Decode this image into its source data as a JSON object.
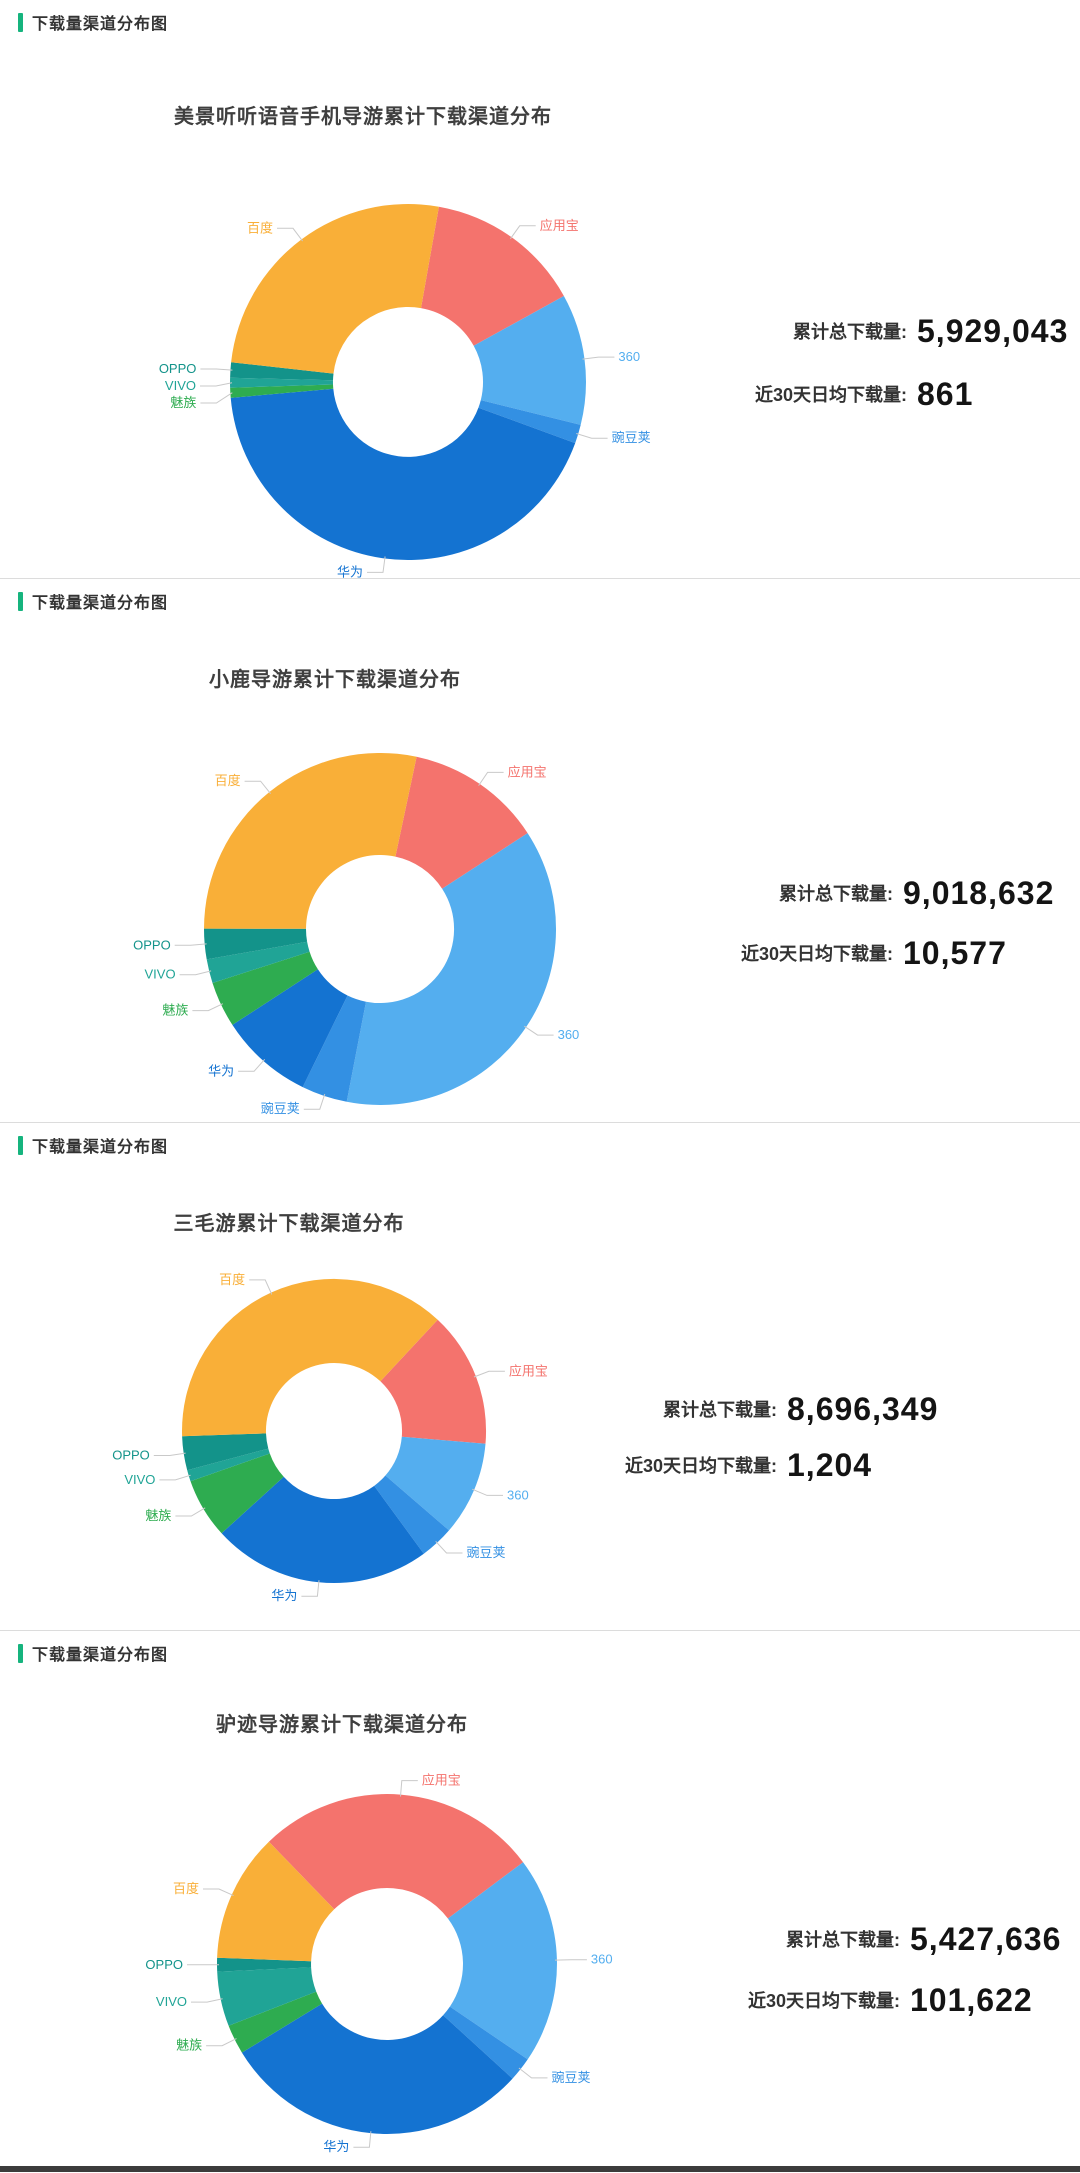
{
  "section_header": "下载量渠道分布图",
  "labels": {
    "total": "累计总下载量:",
    "daily": "近30天日均下载量:"
  },
  "accent_color": "#16B47E",
  "chart_data": [
    {
      "type": "donut",
      "title": "美景听听语音手机导游累计下载渠道分布",
      "value_unit": "percent share (estimated from arc angles)",
      "start_angle_deg_clockwise_from_top": 10,
      "slices": [
        {
          "label": "应用宝",
          "value": 14.2,
          "color": "#F4736D"
        },
        {
          "label": "360",
          "value": 11.9,
          "color": "#54AEEF"
        },
        {
          "label": "豌豆荚",
          "value": 1.7,
          "color": "#3390E3"
        },
        {
          "label": "华为",
          "value": 43.0,
          "color": "#1473D1"
        },
        {
          "label": "魅族",
          "value": 0.9,
          "color": "#2EAC50"
        },
        {
          "label": "VIVO",
          "value": 0.9,
          "color": "#20A496"
        },
        {
          "label": "OPPO",
          "value": 1.4,
          "color": "#13938A"
        },
        {
          "label": "百度",
          "value": 26.0,
          "color": "#F9AF38"
        }
      ],
      "totals": {
        "total": "5,929,043",
        "daily": "861"
      }
    },
    {
      "type": "donut",
      "title": "小鹿导游累计下载渠道分布",
      "value_unit": "percent share (estimated from arc angles)",
      "start_angle_deg_clockwise_from_top": 12,
      "slices": [
        {
          "label": "应用宝",
          "value": 12.5,
          "color": "#F4736D"
        },
        {
          "label": "360",
          "value": 37.2,
          "color": "#54AEEF"
        },
        {
          "label": "豌豆荚",
          "value": 4.2,
          "color": "#3390E3"
        },
        {
          "label": "华为",
          "value": 8.6,
          "color": "#1473D1"
        },
        {
          "label": "魅族",
          "value": 4.2,
          "color": "#2EAC50"
        },
        {
          "label": "VIVO",
          "value": 2.2,
          "color": "#20A496"
        },
        {
          "label": "OPPO",
          "value": 2.8,
          "color": "#13938A"
        },
        {
          "label": "百度",
          "value": 28.3,
          "color": "#F9AF38"
        }
      ],
      "totals": {
        "total": "9,018,632",
        "daily": "10,577"
      }
    },
    {
      "type": "donut",
      "title": "三毛游累计下载渠道分布",
      "value_unit": "percent share (estimated from arc angles)",
      "start_angle_deg_clockwise_from_top": 43,
      "slices": [
        {
          "label": "应用宝",
          "value": 14.4,
          "color": "#F4736D"
        },
        {
          "label": "360",
          "value": 10.0,
          "color": "#54AEEF"
        },
        {
          "label": "豌豆荚",
          "value": 3.6,
          "color": "#3390E3"
        },
        {
          "label": "华为",
          "value": 23.3,
          "color": "#1473D1"
        },
        {
          "label": "魅族",
          "value": 6.4,
          "color": "#2EAC50"
        },
        {
          "label": "VIVO",
          "value": 1.2,
          "color": "#20A496"
        },
        {
          "label": "OPPO",
          "value": 3.6,
          "color": "#13938A"
        },
        {
          "label": "百度",
          "value": 37.5,
          "color": "#F9AF38"
        }
      ],
      "totals": {
        "total": "8,696,349",
        "daily": "1,204"
      }
    },
    {
      "type": "donut",
      "title": "驴迹导游累计下载渠道分布",
      "value_unit": "percent share (estimated from arc angles)",
      "start_angle_deg_clockwise_from_top": -44,
      "slices": [
        {
          "label": "应用宝",
          "value": 27.0,
          "color": "#F4736D"
        },
        {
          "label": "360",
          "value": 19.7,
          "color": "#54AEEF"
        },
        {
          "label": "豌豆荚",
          "value": 2.3,
          "color": "#3390E3"
        },
        {
          "label": "华为",
          "value": 29.5,
          "color": "#1473D1"
        },
        {
          "label": "魅族",
          "value": 2.8,
          "color": "#2EAC50"
        },
        {
          "label": "VIVO",
          "value": 5.2,
          "color": "#20A496"
        },
        {
          "label": "OPPO",
          "value": 1.3,
          "color": "#13938A"
        },
        {
          "label": "百度",
          "value": 12.2,
          "color": "#F9AF38"
        }
      ],
      "totals": {
        "total": "5,427,636",
        "daily": "101,622"
      }
    }
  ]
}
